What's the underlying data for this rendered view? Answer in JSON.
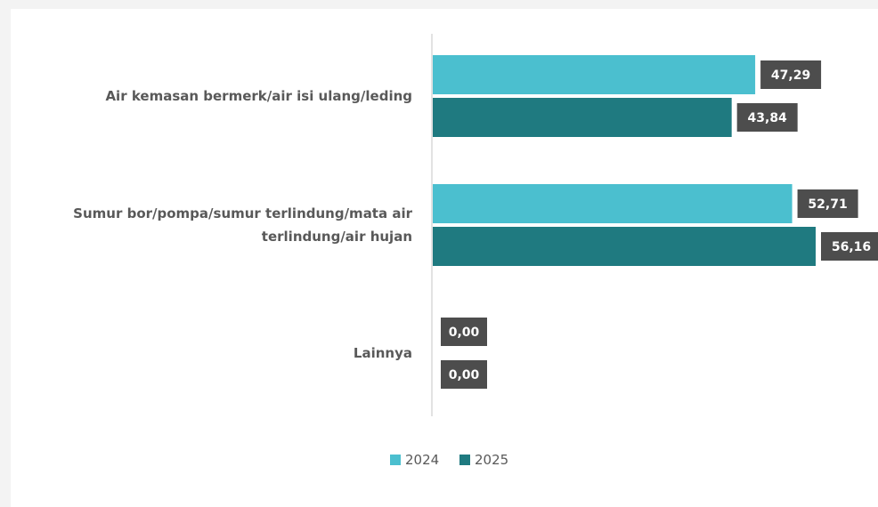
{
  "chart_data": {
    "type": "bar",
    "orientation": "horizontal",
    "categories": [
      [
        "Air kemasan bermerk/air isi ulang/leding"
      ],
      [
        "Sumur bor/pompa/sumur terlindung/mata air",
        "terlindung/air hujan"
      ],
      [
        "Lainnya"
      ]
    ],
    "series": [
      {
        "name": "2024",
        "color": "#4bbfcf",
        "values": [
          47.29,
          52.71,
          0.0
        ],
        "labels": [
          "47,29",
          "52,71",
          "0,00"
        ]
      },
      {
        "name": "2025",
        "color": "#1f7a80",
        "values": [
          43.84,
          56.16,
          0.0
        ],
        "labels": [
          "43,84",
          "56,16",
          "0,00"
        ]
      }
    ],
    "title": "",
    "xlabel": "",
    "ylabel": "",
    "xlim": [
      0,
      57
    ],
    "grid": false,
    "legend_position": "bottom",
    "data_label_background": "#4d4d4d",
    "axis_color": "#d9d9d9"
  }
}
